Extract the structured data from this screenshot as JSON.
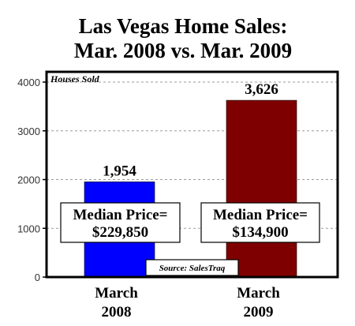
{
  "chart_data": {
    "type": "bar",
    "title_lines": [
      "Las Vegas Home Sales:",
      "Mar. 2008 vs. Mar. 2009"
    ],
    "ylabel": "Houses Sold",
    "ylim": [
      0,
      4000
    ],
    "yticks": [
      0,
      1000,
      2000,
      3000,
      4000
    ],
    "grid": true,
    "categories": [
      {
        "line1": "March",
        "line2": "2008"
      },
      {
        "line1": "March",
        "line2": "2009"
      }
    ],
    "values": [
      1954,
      3626
    ],
    "value_labels": [
      "1,954",
      "3,626"
    ],
    "bar_colors": [
      "#0000ff",
      "#7f0000"
    ],
    "annotations": [
      {
        "line1": "Median Price=",
        "line2": "$229,850"
      },
      {
        "line1": "Median Price=",
        "line2": "$134,900"
      }
    ],
    "source": "Source: SalesTraq"
  }
}
